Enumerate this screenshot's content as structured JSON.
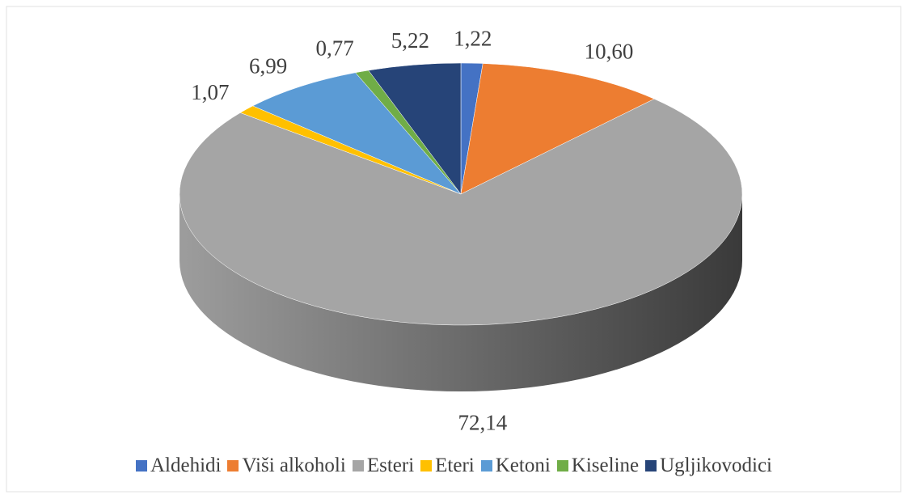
{
  "chart_data": {
    "type": "pie",
    "categories": [
      "Aldehidi",
      "Viši alkoholi",
      "Esteri",
      "Eteri",
      "Ketoni",
      "Kiseline",
      "Ugljikovodici"
    ],
    "values": [
      1.22,
      10.6,
      72.14,
      1.07,
      6.99,
      0.77,
      5.22
    ],
    "value_labels": [
      "1,22",
      "10,60",
      "72,14",
      "1,07",
      "6,99",
      "0,77",
      "5,22"
    ],
    "colors": [
      "#4472c4",
      "#ed7d31",
      "#a5a5a5",
      "#ffc000",
      "#5b9bd5",
      "#70ad47",
      "#264478"
    ],
    "legend": "bottom"
  }
}
